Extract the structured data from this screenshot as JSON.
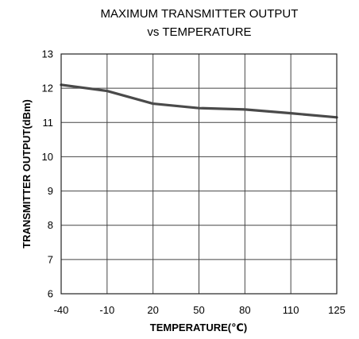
{
  "chart_data": {
    "type": "line",
    "title_line1": "MAXIMUM TRANSMITTER OUTPUT",
    "title_line2": "vs TEMPERATURE",
    "xlabel": "TEMPERATURE(℃)",
    "ylabel": "TRANSMITTER OUTPUT(dBm)",
    "categories": [
      "-40",
      "-10",
      "20",
      "50",
      "80",
      "110",
      "125"
    ],
    "yticks": [
      "6",
      "7",
      "8",
      "9",
      "10",
      "11",
      "12",
      "13"
    ],
    "ylim": [
      6,
      13
    ],
    "grid": true,
    "series": [
      {
        "values": [
          12.1,
          11.92,
          11.55,
          11.42,
          11.38,
          11.27,
          11.15
        ]
      }
    ],
    "colors": {
      "series": "#4a4a4a",
      "grid": "#444444"
    }
  }
}
